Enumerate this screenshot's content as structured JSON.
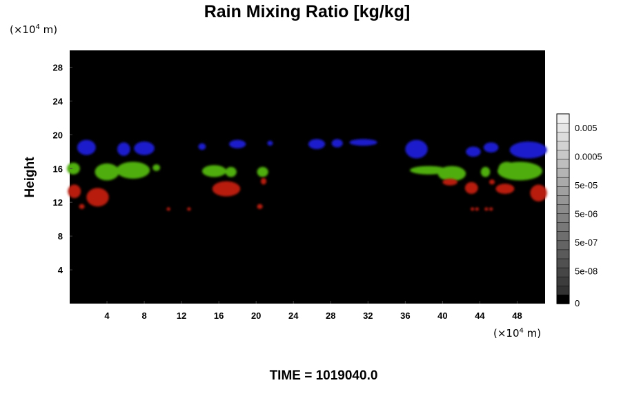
{
  "chart_data": {
    "type": "heatmap",
    "title": "Rain Mixing Ratio [kg/kg]",
    "xlabel": "",
    "ylabel": "Height",
    "x_unit": {
      "prefix": "(×10",
      "exp": "4",
      "suffix": " m)"
    },
    "y_unit": {
      "prefix": "(×10",
      "exp": "4",
      "suffix": " m)"
    },
    "xlim": [
      0,
      51
    ],
    "ylim": [
      0,
      30
    ],
    "x_ticks": [
      "4",
      "8",
      "12",
      "16",
      "20",
      "24",
      "28",
      "32",
      "36",
      "40",
      "44",
      "48"
    ],
    "y_ticks": [
      "4",
      "8",
      "12",
      "16",
      "20",
      "24",
      "28"
    ],
    "background_color": "#000000",
    "time_label": "TIME = 1019040.0",
    "colorbar": {
      "levels": 21,
      "tick_labels": [
        "0",
        "5e-08",
        "5e-07",
        "5e-06",
        "5e-05",
        "0.0005",
        "0.005"
      ]
    },
    "layers": [
      {
        "name": "upper",
        "color": "#1a1acc",
        "blobs": [
          {
            "x": 1.8,
            "y": 18.5,
            "rx": 1.0,
            "ry": 0.9
          },
          {
            "x": 5.8,
            "y": 18.3,
            "rx": 0.7,
            "ry": 0.8
          },
          {
            "x": 8.0,
            "y": 18.4,
            "rx": 1.1,
            "ry": 0.8
          },
          {
            "x": 14.2,
            "y": 18.6,
            "rx": 0.4,
            "ry": 0.4
          },
          {
            "x": 18.0,
            "y": 18.9,
            "rx": 0.9,
            "ry": 0.5
          },
          {
            "x": 21.5,
            "y": 19.0,
            "rx": 0.3,
            "ry": 0.3
          },
          {
            "x": 26.5,
            "y": 18.9,
            "rx": 0.9,
            "ry": 0.6
          },
          {
            "x": 28.7,
            "y": 19.0,
            "rx": 0.6,
            "ry": 0.5
          },
          {
            "x": 31.5,
            "y": 19.1,
            "rx": 1.5,
            "ry": 0.4
          },
          {
            "x": 37.2,
            "y": 18.3,
            "rx": 1.2,
            "ry": 1.1
          },
          {
            "x": 43.3,
            "y": 18.0,
            "rx": 0.8,
            "ry": 0.6
          },
          {
            "x": 45.2,
            "y": 18.5,
            "rx": 0.8,
            "ry": 0.6
          },
          {
            "x": 49.2,
            "y": 18.2,
            "rx": 2.0,
            "ry": 1.0
          }
        ]
      },
      {
        "name": "middle",
        "color": "#4fae10",
        "blobs": [
          {
            "x": 0.4,
            "y": 16.0,
            "rx": 0.7,
            "ry": 0.7
          },
          {
            "x": 4.0,
            "y": 15.6,
            "rx": 1.3,
            "ry": 1.0
          },
          {
            "x": 6.8,
            "y": 15.8,
            "rx": 1.8,
            "ry": 1.0
          },
          {
            "x": 9.3,
            "y": 16.1,
            "rx": 0.4,
            "ry": 0.4
          },
          {
            "x": 15.5,
            "y": 15.7,
            "rx": 1.3,
            "ry": 0.7
          },
          {
            "x": 17.3,
            "y": 15.6,
            "rx": 0.6,
            "ry": 0.6
          },
          {
            "x": 20.7,
            "y": 15.6,
            "rx": 0.6,
            "ry": 0.6
          },
          {
            "x": 38.5,
            "y": 15.8,
            "rx": 2.0,
            "ry": 0.5
          },
          {
            "x": 41.0,
            "y": 15.4,
            "rx": 1.5,
            "ry": 0.9
          },
          {
            "x": 44.6,
            "y": 15.6,
            "rx": 0.5,
            "ry": 0.6
          },
          {
            "x": 48.3,
            "y": 15.7,
            "rx": 2.4,
            "ry": 1.1
          },
          {
            "x": 46.9,
            "y": 16.0,
            "rx": 0.9,
            "ry": 0.8
          }
        ]
      },
      {
        "name": "lower",
        "color": "#b81a10",
        "blobs": [
          {
            "x": 0.5,
            "y": 13.3,
            "rx": 0.7,
            "ry": 0.8
          },
          {
            "x": 3.0,
            "y": 12.6,
            "rx": 1.2,
            "ry": 1.1
          },
          {
            "x": 1.3,
            "y": 11.5,
            "rx": 0.3,
            "ry": 0.3
          },
          {
            "x": 10.6,
            "y": 11.2,
            "rx": 0.2,
            "ry": 0.2
          },
          {
            "x": 12.8,
            "y": 11.2,
            "rx": 0.2,
            "ry": 0.2
          },
          {
            "x": 16.8,
            "y": 13.6,
            "rx": 1.5,
            "ry": 0.9
          },
          {
            "x": 20.4,
            "y": 11.5,
            "rx": 0.3,
            "ry": 0.3
          },
          {
            "x": 20.8,
            "y": 14.5,
            "rx": 0.3,
            "ry": 0.4
          },
          {
            "x": 40.8,
            "y": 14.4,
            "rx": 0.8,
            "ry": 0.4
          },
          {
            "x": 43.1,
            "y": 13.7,
            "rx": 0.7,
            "ry": 0.7
          },
          {
            "x": 43.2,
            "y": 11.2,
            "rx": 0.2,
            "ry": 0.2
          },
          {
            "x": 43.7,
            "y": 11.2,
            "rx": 0.2,
            "ry": 0.2
          },
          {
            "x": 44.7,
            "y": 11.2,
            "rx": 0.2,
            "ry": 0.2
          },
          {
            "x": 45.2,
            "y": 11.2,
            "rx": 0.2,
            "ry": 0.2
          },
          {
            "x": 45.3,
            "y": 14.4,
            "rx": 0.3,
            "ry": 0.3
          },
          {
            "x": 46.7,
            "y": 13.6,
            "rx": 1.0,
            "ry": 0.6
          },
          {
            "x": 50.3,
            "y": 13.1,
            "rx": 0.9,
            "ry": 1.0
          }
        ]
      }
    ]
  }
}
